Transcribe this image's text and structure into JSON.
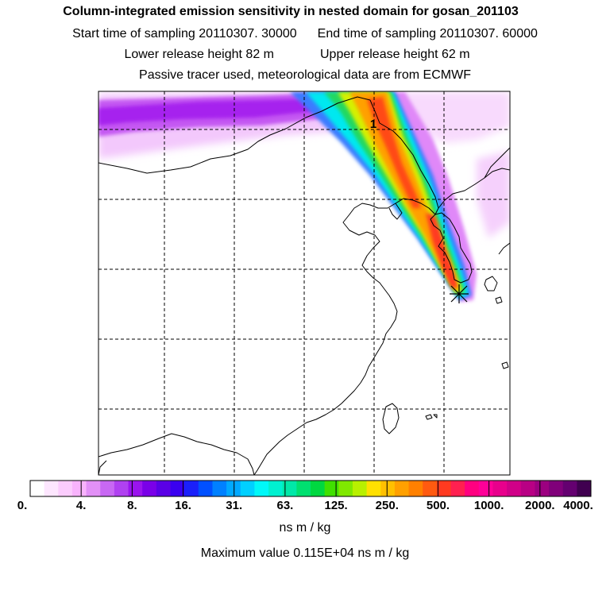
{
  "title": "Column-integrated emission sensitivity in nested domain for gosan_201103",
  "start_label": "Start time of sampling 20110307. 30000",
  "end_label": "End time of sampling 20110307. 60000",
  "lower_label": "Lower release height   82 m",
  "upper_label": "Upper release height   62 m",
  "tracer_label": "Passive tracer used, meteorological data are from ECMWF",
  "plume_label": "1",
  "chart_data": {
    "type": "heatmap",
    "title": "Column-integrated emission sensitivity in nested domain for gosan_201103",
    "colorbar": {
      "tick_labels": [
        "0.",
        "4.",
        "8.",
        "16.",
        "31.",
        "63.",
        "125.",
        "250.",
        "500.",
        "1000.",
        "2000.",
        "4000."
      ],
      "tick_values": [
        0,
        4,
        8,
        16,
        31,
        63,
        125,
        250,
        500,
        1000,
        2000,
        4000
      ],
      "unit": "ns m / kg",
      "colors": [
        "#ffffff",
        "#fde6fe",
        "#fbccfd",
        "#f8b3fc",
        "#e290f6",
        "#c868f3",
        "#b041f0",
        "#9a14ee",
        "#7a00e8",
        "#5a00e6",
        "#3a00f0",
        "#1a20fa",
        "#0050ff",
        "#0080ff",
        "#00a8ff",
        "#00d0ff",
        "#00f8f8",
        "#00f0d0",
        "#00e8a8",
        "#00e070",
        "#00d840",
        "#40e000",
        "#80e800",
        "#b8f000",
        "#ffe000",
        "#ffc000",
        "#ffa000",
        "#ff8000",
        "#ff5a10",
        "#ff3a20",
        "#ff2050",
        "#ff0080",
        "#ff0098",
        "#e8008c",
        "#d00088",
        "#b80084",
        "#9c0080",
        "#80007a",
        "#640070",
        "#400050"
      ]
    },
    "max_value_label": "Maximum value  0.115E+04 ns m / kg",
    "max_value": 1150,
    "receptor": "gosan",
    "sampling_start": "20110307. 30000",
    "sampling_end": "20110307. 60000",
    "release_height_lower_m": 82,
    "release_height_upper_m": 62,
    "grid": "on"
  }
}
